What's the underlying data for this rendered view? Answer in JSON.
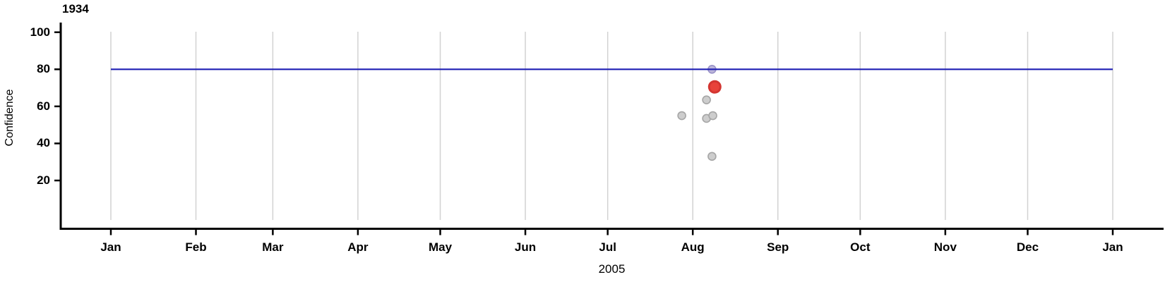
{
  "title": "1934",
  "chart_data": {
    "type": "scatter",
    "title": "1934",
    "xlabel": "2005",
    "ylabel": "Confidence",
    "x_axis": {
      "kind": "date",
      "year": "2005",
      "tick_labels": [
        "Jan",
        "Feb",
        "Mar",
        "Apr",
        "May",
        "Jun",
        "Jul",
        "Aug",
        "Sep",
        "Oct",
        "Nov",
        "Dec",
        "Jan"
      ],
      "tick_day_of_year": [
        0,
        31,
        59,
        90,
        120,
        151,
        181,
        212,
        243,
        273,
        304,
        334,
        365
      ],
      "domain_days": [
        0,
        365
      ],
      "grid": true
    },
    "y_axis": {
      "tick_values": [
        20,
        40,
        60,
        80,
        100
      ],
      "range": [
        0,
        105
      ],
      "grid": false
    },
    "threshold_line": {
      "value": 80,
      "span_days": [
        0,
        365
      ],
      "color": "#1f1fb4"
    },
    "points": [
      {
        "date": "2005-07-28",
        "day_of_year": 208,
        "confidence": 55,
        "role": "past"
      },
      {
        "date": "2005-08-06",
        "day_of_year": 217,
        "confidence": 63.5,
        "role": "past"
      },
      {
        "date": "2005-08-06",
        "day_of_year": 217,
        "confidence": 53.5,
        "role": "past"
      },
      {
        "date": "2005-08-08",
        "day_of_year": 219.3,
        "confidence": 55,
        "role": "past"
      },
      {
        "date": "2005-08-08",
        "day_of_year": 219,
        "confidence": 33,
        "role": "past"
      },
      {
        "date": "2005-08-08",
        "day_of_year": 219,
        "confidence": 80,
        "role": "on-threshold"
      },
      {
        "date": "2005-08-09",
        "day_of_year": 220,
        "confidence": 70.5,
        "role": "highlighted"
      }
    ],
    "colors": {
      "past_fill": "#cdcdcd",
      "past_stroke": "#a6a6a6",
      "on_threshold_fill": "#bcb6da",
      "on_threshold_stroke": "#9a93c8",
      "highlighted_fill": "#e8423a",
      "highlighted_stroke": "#d33531",
      "threshold_line": "#1f1fb4",
      "gridline": "#d2d2d2",
      "axis": "#000000",
      "background": "#ffffff"
    },
    "point_radius": {
      "past": 5.5,
      "on_threshold": 5.5,
      "highlighted": 8
    }
  }
}
